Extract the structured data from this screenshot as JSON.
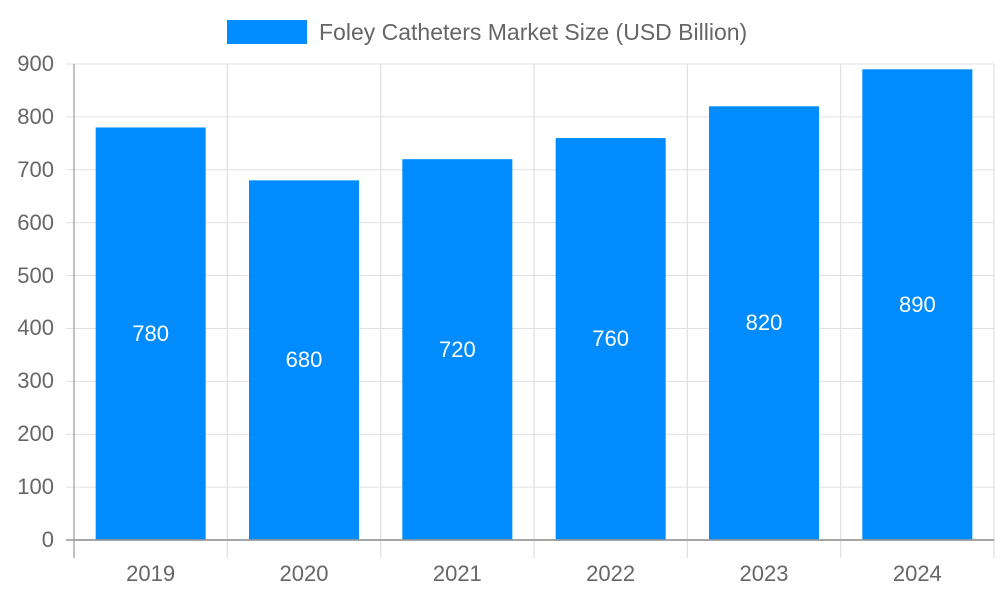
{
  "chart_data": {
    "type": "bar",
    "title": "",
    "categories": [
      "2019",
      "2020",
      "2021",
      "2022",
      "2023",
      "2024"
    ],
    "series": [
      {
        "name": "Foley Catheters Market Size (USD Billion)",
        "values": [
          780,
          680,
          720,
          760,
          820,
          890
        ],
        "color": "#008cff"
      }
    ],
    "values": [
      780,
      680,
      720,
      760,
      820,
      890
    ],
    "data_labels": [
      "780",
      "680",
      "720",
      "760",
      "820",
      "890"
    ],
    "xlabel": "",
    "ylabel": "",
    "ylim": [
      0,
      900
    ],
    "yticks": [
      "0",
      "100",
      "200",
      "300",
      "400",
      "500",
      "600",
      "700",
      "800",
      "900"
    ],
    "grid": true,
    "legend_position": "top"
  },
  "legend": {
    "label": "Foley Catheters Market Size (USD Billion)"
  },
  "colors": {
    "bar": "#008cff",
    "grid": "#e0e0e0",
    "axis": "#999999",
    "text": "#666666"
  }
}
